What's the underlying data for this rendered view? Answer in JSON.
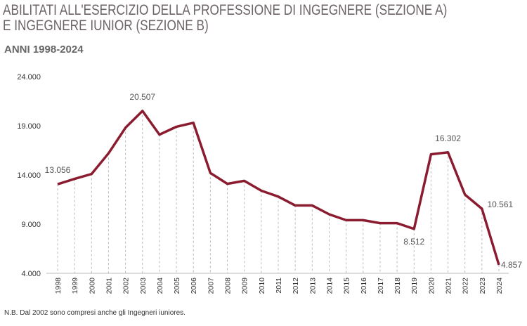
{
  "chart_data": {
    "type": "line",
    "title_line1": "ABILITATI ALL'ESERCIZIO DELLA PROFESSIONE DI INGEGNERE (SEZIONE A)",
    "title_line2": "E INGEGNERE IUNIOR (SEZIONE B)",
    "subtitle": "ANNI 1998-2024",
    "note": "N.B. Dal 2002 sono compresi anche gli Ingegneri iuniores.",
    "ylim": [
      4000,
      24000
    ],
    "yticks": [
      4000,
      9000,
      14000,
      19000,
      24000
    ],
    "ytick_labels": [
      "4.000",
      "9.000",
      "14.000",
      "19.000",
      "24.000"
    ],
    "x": [
      "1998",
      "1999",
      "2000",
      "2001",
      "2002",
      "2003",
      "2004",
      "2005",
      "2006",
      "2007",
      "2008",
      "2009",
      "2010",
      "2011",
      "2012",
      "2013",
      "2014",
      "2015",
      "2016",
      "2017",
      "2018",
      "2019",
      "2020",
      "2021",
      "2022",
      "2023",
      "2024"
    ],
    "values": [
      13056,
      13600,
      14100,
      16200,
      18800,
      20507,
      18100,
      18900,
      19300,
      14200,
      13100,
      13400,
      12400,
      11800,
      10900,
      10900,
      10000,
      9400,
      9400,
      9100,
      9100,
      8512,
      16100,
      16302,
      12000,
      10561,
      4857
    ],
    "data_labels": [
      {
        "year": "1998",
        "text": "13.056"
      },
      {
        "year": "2003",
        "text": "20.507"
      },
      {
        "year": "2019",
        "text": "8.512"
      },
      {
        "year": "2021",
        "text": "16.302"
      },
      {
        "year": "2023",
        "text": "10.561"
      },
      {
        "year": "2024",
        "text": "4.857"
      }
    ],
    "line_color": "#8b1c30",
    "grid": "vertical dashed drop-lines"
  }
}
